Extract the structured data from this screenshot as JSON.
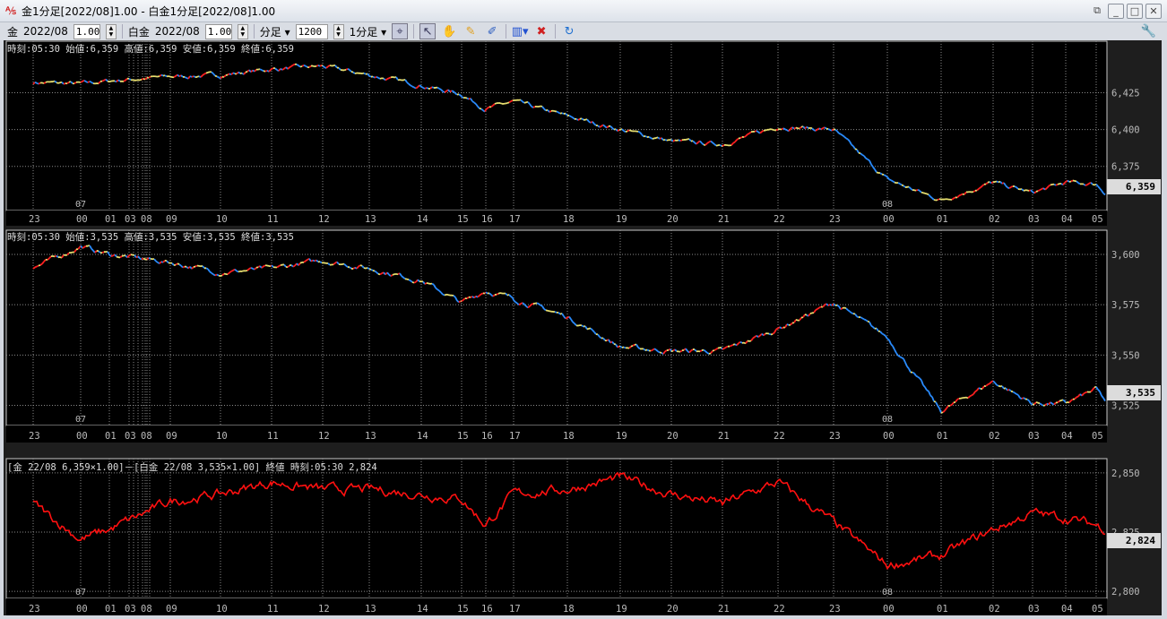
{
  "window": {
    "title": "金1分足[2022/08]1.00 - 白金1分足[2022/08]1.00",
    "controls": [
      "⧉",
      "_",
      "□",
      "✕"
    ]
  },
  "toolbar": {
    "gold_label": "金",
    "gold_month": "2022/08",
    "gold_mult": "1.00",
    "plat_label": "白金",
    "plat_month": "2022/08",
    "plat_mult": "1.00",
    "period_type": "分足",
    "bar_count": "1200",
    "period": "1分足"
  },
  "colors": {
    "up": "#ff2020",
    "down": "#2a8cff",
    "flat": "#e8e070",
    "ratio": "#ff1010",
    "grid": "#8a8a8a"
  },
  "x_ticks": [
    "23",
    "00",
    "01",
    "03",
    "08",
    "09",
    "10",
    "11",
    "12",
    "13",
    "14",
    "15",
    "16",
    "17",
    "18",
    "19",
    "20",
    "21",
    "22",
    "23",
    "00",
    "01",
    "02",
    "03",
    "04",
    "05"
  ],
  "date_marks": [
    "07",
    "08"
  ],
  "chart_data": [
    {
      "type": "line",
      "name_info": "時刻:05:30 始値:6,359 高値:6,359 安値:6,359 終値:6,359",
      "ylim": [
        6345,
        6460
      ],
      "yticks": [
        "6,425",
        "6,400",
        "6,375"
      ],
      "last": "6,359",
      "values": [
        6432,
        6431,
        6433,
        6436,
        6437,
        6441,
        6443,
        6437,
        6430,
        6424,
        6414,
        6419,
        6409,
        6400,
        6392,
        6390,
        6402,
        6400,
        6366,
        6352,
        6364,
        6357,
        6364,
        6363,
        6356
      ]
    },
    {
      "type": "line",
      "name_info": "時刻:05:30 始値:3,535 高値:3,535 安値:3,535 終値:3,535",
      "ylim": [
        3515,
        3612
      ],
      "yticks": [
        "3,600",
        "3,575",
        "3,550",
        "3,525"
      ],
      "last": "3,535",
      "values": [
        3593,
        3604,
        3600,
        3596,
        3591,
        3593,
        3597,
        3593,
        3587,
        3576,
        3582,
        3578,
        3569,
        3554,
        3552,
        3552,
        3563,
        3576,
        3559,
        3522,
        3537,
        3526,
        3526,
        3533,
        3526
      ]
    },
    {
      "type": "line",
      "name_info": "[金 22/08 6,359×1.00]－[白金 22/08 3,535×1.00] 終値 時刻:05:30 2,824",
      "ylim": [
        2797,
        2856
      ],
      "yticks": [
        "2,850",
        "2,825",
        "2,800"
      ],
      "last": "2,824",
      "values": [
        2837,
        2822,
        2826,
        2838,
        2841,
        2846,
        2843,
        2843,
        2841,
        2839,
        2828,
        2841,
        2843,
        2848,
        2841,
        2837,
        2846,
        2829,
        2811,
        2815,
        2826,
        2833,
        2831,
        2828,
        2826
      ]
    }
  ]
}
